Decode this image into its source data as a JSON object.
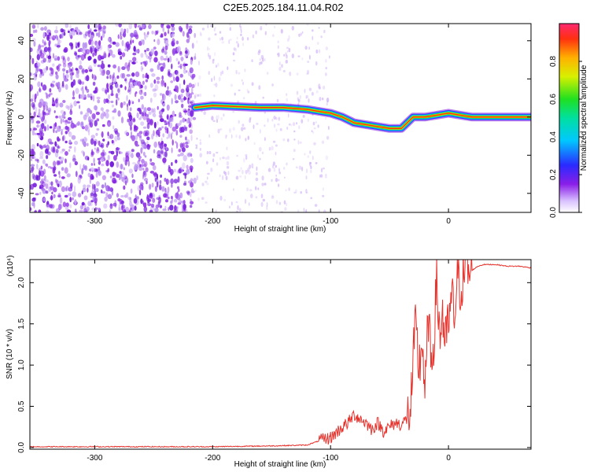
{
  "title": "C2E5.2025.184.11.04.R02",
  "colors": {
    "line": "#e8322c",
    "noise_purple": "#7a1fe0",
    "signal_core": "#ff2a00"
  },
  "chart_data": [
    {
      "type": "heatmap",
      "xlabel": "Height of straight line (km)",
      "ylabel": "Frequency (Hz)",
      "xlim": [
        -355,
        70
      ],
      "ylim": [
        -50,
        49
      ],
      "xticks": [
        -300,
        -200,
        -100,
        0
      ],
      "xtick_labels": [
        "-300",
        "-200",
        "-100",
        "0"
      ],
      "yticks": [
        -40,
        -20,
        0,
        20,
        40
      ],
      "ytick_labels": [
        "-40",
        "-20",
        "0",
        "20",
        "40"
      ],
      "colorbar": {
        "label": "Normalized spectral amplitude",
        "range": [
          0.0,
          1.0
        ],
        "ticks": [
          0.0,
          0.2,
          0.4,
          0.6,
          0.8
        ],
        "tick_labels": [
          "0.0",
          "0.2",
          "0.4",
          "0.6",
          "0.8"
        ],
        "colormap": "rainbow (white, purple, blue, cyan, green, yellow, orange, red)"
      },
      "ridge_frequency_hz": {
        "x": [
          -215,
          -200,
          -180,
          -160,
          -140,
          -120,
          -110,
          -100,
          -90,
          -80,
          -70,
          -60,
          -50,
          -40,
          -30,
          -20,
          -10,
          0,
          10,
          20,
          40,
          70
        ],
        "y": [
          5,
          6,
          5.5,
          5,
          5,
          4,
          3,
          2,
          0,
          -3,
          -4,
          -5,
          -6,
          -6,
          0,
          0,
          1,
          2,
          1,
          0,
          0,
          0
        ]
      },
      "noise_region_km": [
        -355,
        -215
      ]
    },
    {
      "type": "line",
      "xlabel": "Height of straight line (km)",
      "ylabel": "SNR (10 * v/v)",
      "y_multiplier": "(x10⁴)",
      "xlim": [
        -355,
        70
      ],
      "ylim": [
        -0.02,
        2.28
      ],
      "xticks": [
        -300,
        -200,
        -100,
        0
      ],
      "xtick_labels": [
        "-300",
        "-200",
        "-100",
        "0"
      ],
      "yticks": [
        0.0,
        0.5,
        1.0,
        1.5,
        2.0
      ],
      "ytick_labels": [
        "0.0",
        "0.5",
        "1.0",
        "1.5",
        "2.0"
      ],
      "series": [
        {
          "x": [
            -355,
            -300,
            -250,
            -200,
            -150,
            -120,
            -110,
            -100,
            -95,
            -90,
            -85,
            -80,
            -75,
            -70,
            -65,
            -60,
            -55,
            -50,
            -45,
            -40,
            -35,
            -32,
            -30,
            -28,
            -25,
            -22,
            -20,
            -17,
            -15,
            -12,
            -10,
            -7,
            -5,
            -3,
            0,
            3,
            5,
            8,
            10,
            13,
            15,
            18,
            20,
            25,
            30,
            40,
            50,
            60,
            70
          ],
          "y": [
            0.01,
            0.01,
            0.01,
            0.01,
            0.02,
            0.03,
            0.08,
            0.12,
            0.18,
            0.25,
            0.3,
            0.4,
            0.35,
            0.3,
            0.22,
            0.3,
            0.2,
            0.25,
            0.3,
            0.28,
            0.35,
            0.5,
            1.0,
            1.45,
            0.95,
            1.3,
            0.6,
            1.6,
            1.0,
            1.4,
            2.0,
            1.3,
            1.7,
            1.2,
            1.5,
            1.8,
            1.6,
            2.05,
            1.95,
            2.1,
            2.3,
            2.05,
            2.15,
            2.2,
            2.22,
            2.22,
            2.2,
            2.2,
            2.18
          ]
        }
      ]
    }
  ]
}
